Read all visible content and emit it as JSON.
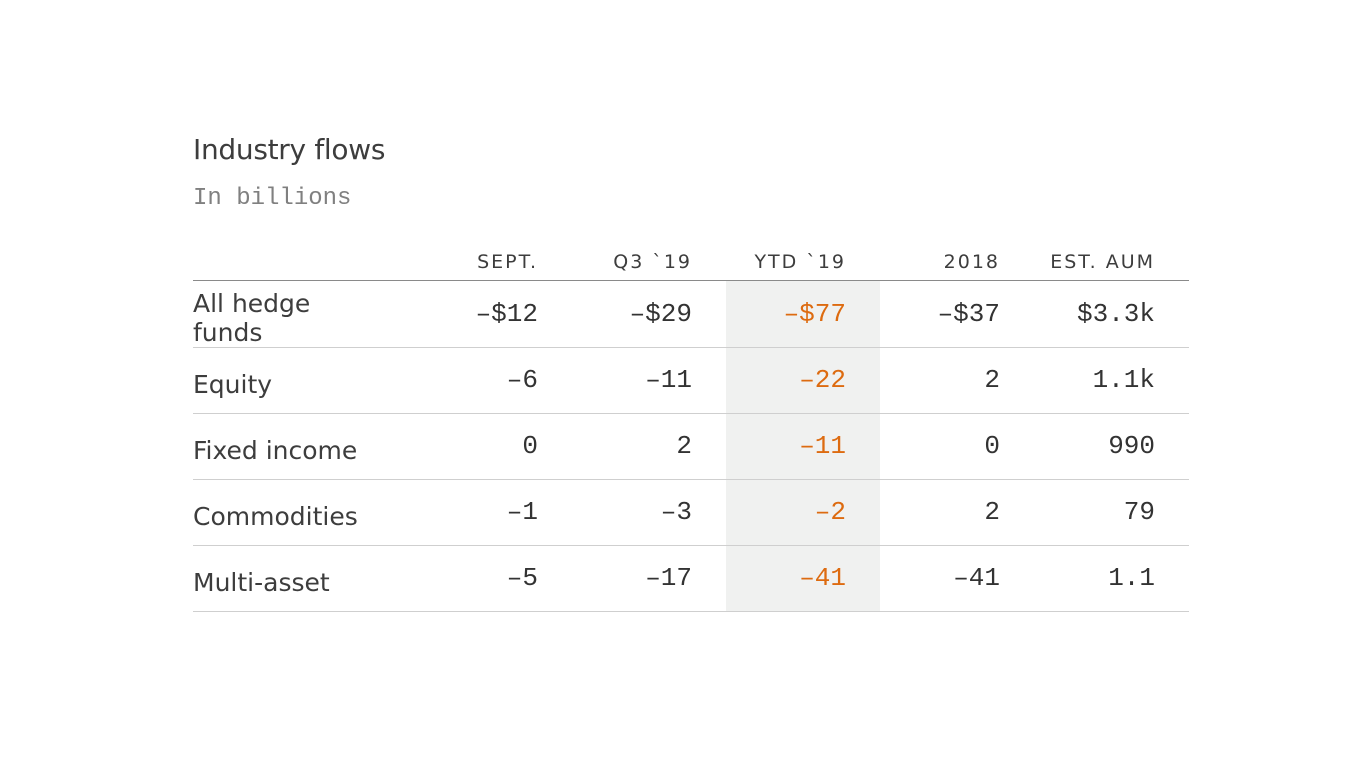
{
  "chart_data": {
    "type": "table",
    "title": "Industry flows",
    "subtitle": "In billions",
    "columns": [
      "SEPT.",
      "Q3 `19",
      "YTD `19",
      "2018",
      "EST. AUM"
    ],
    "highlight_column": 2,
    "highlight_color": "#dd6b10",
    "rows": [
      {
        "label": "All hedge funds",
        "cells": [
          "–$12",
          "–$29",
          "–$77",
          "–$37",
          "$3.3k"
        ]
      },
      {
        "label": "Equity",
        "cells": [
          "–6",
          "–11",
          "–22",
          "2",
          "1.1k"
        ]
      },
      {
        "label": "Fixed income",
        "cells": [
          "0",
          "2",
          "–11",
          "0",
          "990"
        ]
      },
      {
        "label": "Commodities",
        "cells": [
          "–1",
          "–3",
          "–2",
          "2",
          "79"
        ]
      },
      {
        "label": "Multi-asset",
        "cells": [
          "–5",
          "–17",
          "–41",
          "–41",
          "1.1"
        ]
      }
    ]
  }
}
